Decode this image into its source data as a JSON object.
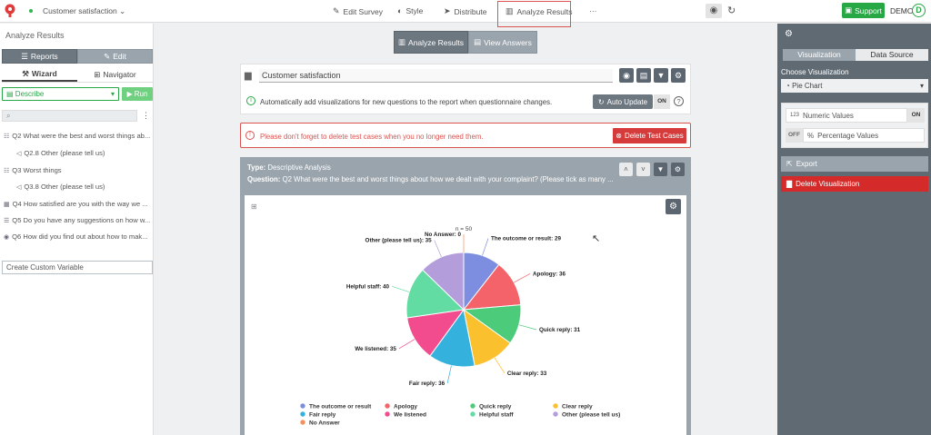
{
  "topbar": {
    "survey_name": "Customer satisfaction",
    "nav": [
      {
        "label": "Edit Survey",
        "icon": "pencil-icon"
      },
      {
        "label": "Style",
        "icon": "palette-icon"
      },
      {
        "label": "Distribute",
        "icon": "send-icon"
      },
      {
        "label": "Analyze Results",
        "icon": "bar-chart-icon"
      },
      {
        "label": "···",
        "icon": "more-icon"
      }
    ],
    "support_label": "Support",
    "user_label": "DEMO",
    "avatar_letter": "D"
  },
  "left": {
    "title": "Analyze Results",
    "segments": [
      "Reports",
      "Edit"
    ],
    "tabs": [
      "Wizard",
      "Navigator"
    ],
    "describe": "Describe",
    "run": "Run",
    "questions": [
      {
        "text": "Q2  What were the best and worst things ab...",
        "sub": false
      },
      {
        "text": "Q2.8  Other (please tell us)",
        "sub": true
      },
      {
        "text": "Q3  Worst things",
        "sub": false
      },
      {
        "text": "Q3.8  Other (please tell us)",
        "sub": true
      },
      {
        "text": "Q4  How satisfied are you with the way we ...",
        "sub": false
      },
      {
        "text": "Q5  Do you have any suggestions on how w...",
        "sub": false
      },
      {
        "text": "Q6  How did you find out about how to mak...",
        "sub": false
      }
    ],
    "custom_variable": "Create Custom Variable"
  },
  "center": {
    "segments": [
      "Analyze Results",
      "View Answers"
    ],
    "report_name": "Customer satisfaction",
    "info_text": "Automatically add visualizations for new questions to the report when questionnaire changes.",
    "auto_update": "Auto Update",
    "auto_update_state": "ON",
    "warning_text": "Please don't forget to delete test cases when you no longer need them.",
    "delete_test_cases": "Delete Test Cases",
    "type_label": "Type:",
    "type_value": "Descriptive Analysis",
    "question_label": "Question:",
    "question_value": "Q2  What were the best and worst things about how we dealt with your complaint? (Please tick as many ..."
  },
  "chart_data": {
    "type": "pie",
    "title": "n = 50",
    "categories": [
      "The outcome or result",
      "Apology",
      "Quick reply",
      "Clear reply",
      "Fair reply",
      "We listened",
      "Helpful staff",
      "Other (please tell us)",
      "No Answer"
    ],
    "values": [
      29,
      36,
      31,
      33,
      36,
      35,
      40,
      35,
      0
    ],
    "colors": [
      "#7d8ee0",
      "#f4626a",
      "#4ccb7a",
      "#fbc02d",
      "#34b1dc",
      "#f24b8e",
      "#63dca3",
      "#b39ddb",
      "#f4915a"
    ],
    "labels": [
      "The outcome or result: 29",
      "Apology: 36",
      "Quick reply: 31",
      "Clear reply: 33",
      "Fair reply: 36",
      "We listened: 35",
      "Helpful staff: 40",
      "Other (please tell us): 35",
      "No Answer: 0"
    ],
    "legend": "bottom"
  },
  "right": {
    "tabs": [
      "Visualization",
      "Data Source"
    ],
    "choose_label": "Choose Visualization",
    "chart_type": "Pie Chart",
    "numeric_badge": "123",
    "numeric_label": "Numeric Values",
    "numeric_state": "ON",
    "percentage_state": "OFF",
    "percentage_label": "Percentage Values",
    "export": "Export",
    "delete_viz": "Delete Visualization"
  }
}
